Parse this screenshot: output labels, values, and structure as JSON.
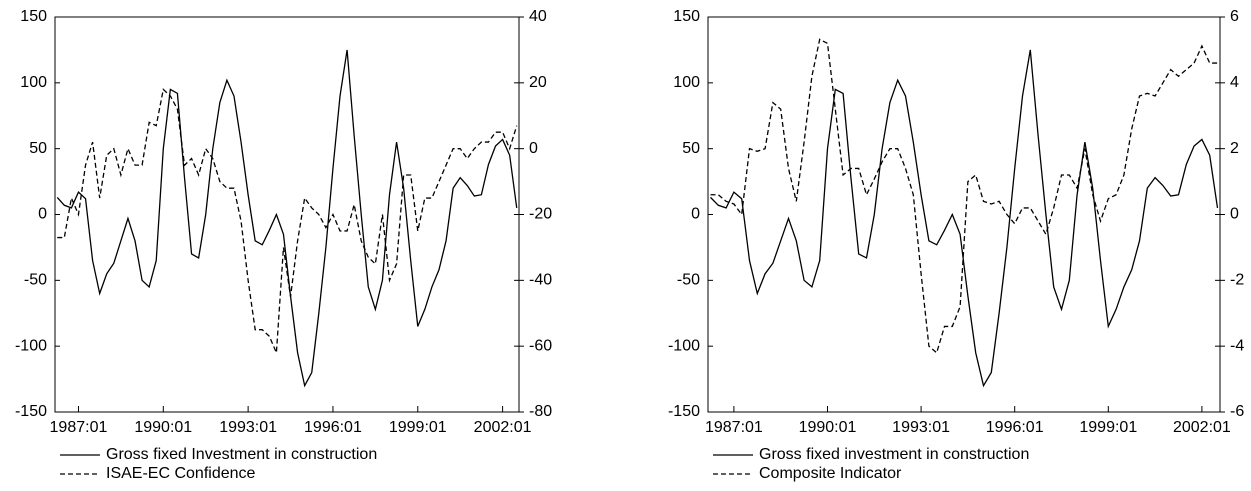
{
  "chart_data": [
    {
      "type": "line",
      "x": [
        1986.25,
        1986.5,
        1986.75,
        1987,
        1987.25,
        1987.5,
        1987.75,
        1988,
        1988.25,
        1988.5,
        1988.75,
        1989,
        1989.25,
        1989.5,
        1989.75,
        1990,
        1990.25,
        1990.5,
        1990.75,
        1991,
        1991.25,
        1991.5,
        1991.75,
        1992,
        1992.25,
        1992.5,
        1992.75,
        1993,
        1993.25,
        1993.5,
        1993.75,
        1994,
        1994.25,
        1994.5,
        1994.75,
        1995,
        1995.25,
        1995.5,
        1995.75,
        1996,
        1996.25,
        1996.5,
        1996.75,
        1997,
        1997.25,
        1997.5,
        1997.75,
        1998,
        1998.25,
        1998.5,
        1998.75,
        1999,
        1999.25,
        1999.5,
        1999.75,
        2000,
        2000.25,
        2000.5,
        2000.75,
        2001,
        2001.25,
        2001.5,
        2001.75,
        2002,
        2002.25,
        2002.5
      ],
      "xlim": [
        1986.17,
        2002.58
      ],
      "xticks": [
        {
          "value": 1987,
          "label": "1987:01"
        },
        {
          "value": 1990,
          "label": "1990:01"
        },
        {
          "value": 1993,
          "label": "1993:01"
        },
        {
          "value": 1996,
          "label": "1996:01"
        },
        {
          "value": 1999,
          "label": "1999:01"
        },
        {
          "value": 2002,
          "label": "2002:01"
        }
      ],
      "ylim": [
        -150,
        150
      ],
      "yticks": [
        -150,
        -100,
        -50,
        0,
        50,
        100,
        150
      ],
      "y2lim": [
        -80,
        40
      ],
      "y2ticks": [
        -80,
        -60,
        -40,
        -20,
        0,
        20,
        40
      ],
      "series": [
        {
          "name": "Gross fixed Investment in construction",
          "color": "#000000",
          "dash": "solid",
          "values": [
            13,
            7,
            5,
            17,
            12,
            -35,
            -60,
            -45,
            -37,
            -20,
            -3,
            -20,
            -50,
            -55,
            -35,
            50,
            95,
            92,
            28,
            -30,
            -33,
            0,
            50,
            85,
            102,
            90,
            55,
            15,
            -20,
            -23,
            -12,
            0,
            -15,
            -62,
            -105,
            -130,
            -120,
            -75,
            -25,
            35,
            90,
            125,
            60,
            0,
            -55,
            -72,
            -50,
            15,
            55,
            20,
            -35,
            -85,
            -72,
            -55,
            -42,
            -20,
            20,
            28,
            22,
            14,
            15,
            38,
            52,
            57,
            45,
            5
          ]
        },
        {
          "name": "ISAE-EC Confidence",
          "color": "#000000",
          "dash": "dashed",
          "axis": "y2",
          "values": [
            -27,
            -27,
            -15,
            -20,
            -5,
            2,
            -15,
            -2,
            0,
            -8,
            0,
            -5,
            -5,
            8,
            7,
            18,
            16,
            12,
            -5,
            -3,
            -8,
            0,
            -3,
            -10,
            -12,
            -12,
            -22,
            -40,
            -55,
            -55,
            -57,
            -62,
            -30,
            -45,
            -28,
            -15,
            -18,
            -20,
            -24,
            -20,
            -25,
            -25,
            -17,
            -28,
            -33,
            -35,
            -20,
            -40,
            -35,
            -8,
            -8,
            -25,
            -15,
            -15,
            -10,
            -5,
            0,
            0,
            -3,
            0,
            2,
            2,
            5,
            5,
            0,
            7
          ]
        }
      ]
    },
    {
      "type": "line",
      "x": [
        1986.25,
        1986.5,
        1986.75,
        1987,
        1987.25,
        1987.5,
        1987.75,
        1988,
        1988.25,
        1988.5,
        1988.75,
        1989,
        1989.25,
        1989.5,
        1989.75,
        1990,
        1990.25,
        1990.5,
        1990.75,
        1991,
        1991.25,
        1991.5,
        1991.75,
        1992,
        1992.25,
        1992.5,
        1992.75,
        1993,
        1993.25,
        1993.5,
        1993.75,
        1994,
        1994.25,
        1994.5,
        1994.75,
        1995,
        1995.25,
        1995.5,
        1995.75,
        1996,
        1996.25,
        1996.5,
        1996.75,
        1997,
        1997.25,
        1997.5,
        1997.75,
        1998,
        1998.25,
        1998.5,
        1998.75,
        1999,
        1999.25,
        1999.5,
        1999.75,
        2000,
        2000.25,
        2000.5,
        2000.75,
        2001,
        2001.25,
        2001.5,
        2001.75,
        2002,
        2002.25,
        2002.5
      ],
      "xlim": [
        1986.17,
        2002.58
      ],
      "xticks": [
        {
          "value": 1987,
          "label": "1987:01"
        },
        {
          "value": 1990,
          "label": "1990:01"
        },
        {
          "value": 1993,
          "label": "1993:01"
        },
        {
          "value": 1996,
          "label": "1996:01"
        },
        {
          "value": 1999,
          "label": "1999:01"
        },
        {
          "value": 2002,
          "label": "2002:01"
        }
      ],
      "ylim": [
        -150,
        150
      ],
      "yticks": [
        -150,
        -100,
        -50,
        0,
        50,
        100,
        150
      ],
      "y2lim": [
        -6,
        6
      ],
      "y2ticks": [
        -6,
        -4,
        -2,
        0,
        2,
        4,
        6
      ],
      "series": [
        {
          "name": "Gross fixed investment in construction",
          "color": "#000000",
          "dash": "solid",
          "values": [
            13,
            7,
            5,
            17,
            12,
            -35,
            -60,
            -45,
            -37,
            -20,
            -3,
            -20,
            -50,
            -55,
            -35,
            50,
            95,
            92,
            28,
            -30,
            -33,
            0,
            50,
            85,
            102,
            90,
            55,
            15,
            -20,
            -23,
            -12,
            0,
            -15,
            -62,
            -105,
            -130,
            -120,
            -75,
            -25,
            35,
            90,
            125,
            60,
            0,
            -55,
            -72,
            -50,
            15,
            55,
            20,
            -35,
            -85,
            -72,
            -55,
            -42,
            -20,
            20,
            28,
            22,
            14,
            15,
            38,
            52,
            57,
            45,
            5
          ]
        },
        {
          "name": "Composite Indicator",
          "color": "#000000",
          "dash": "dashed",
          "axis": "y2",
          "values": [
            0.6,
            0.6,
            0.4,
            0.32,
            0,
            2,
            1.92,
            2,
            3.4,
            3.2,
            1.4,
            0.4,
            2.2,
            4.2,
            5.32,
            5.2,
            3.2,
            1.2,
            1.4,
            1.4,
            0.6,
            1.08,
            1.6,
            2,
            2,
            1.4,
            0.6,
            -1.8,
            -4,
            -4.2,
            -3.4,
            -3.4,
            -2.8,
            1,
            1.2,
            0.4,
            0.32,
            0.4,
            0,
            -0.28,
            0.2,
            0.2,
            -0.2,
            -0.6,
            0.2,
            1.2,
            1.2,
            0.8,
            2,
            0.6,
            -0.2,
            0.48,
            0.6,
            1.2,
            2.6,
            3.6,
            3.68,
            3.6,
            4,
            4.4,
            4.2,
            4.4,
            4.6,
            5.12,
            4.6,
            4.6
          ]
        }
      ]
    }
  ]
}
